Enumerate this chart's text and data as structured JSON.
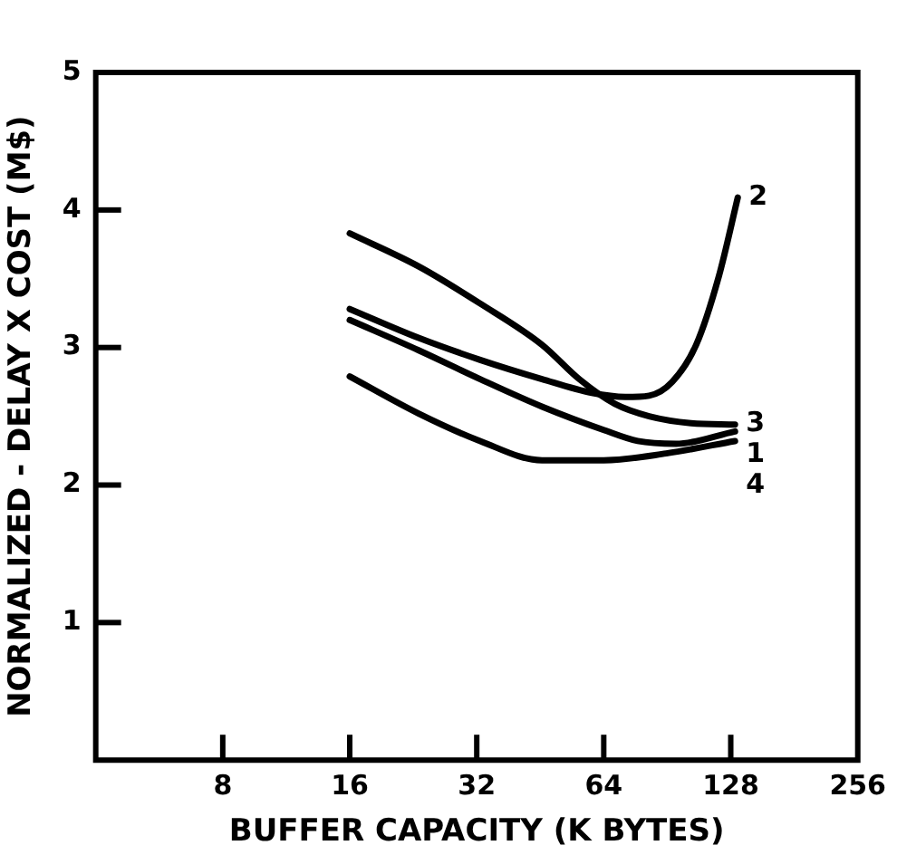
{
  "chart_data": {
    "type": "line",
    "xlabel": "BUFFER CAPACITY (K BYTES)",
    "ylabel": "NORMALIZED - DELAY X COST (M$)",
    "log": "x",
    "xlim": [
      4,
      256
    ],
    "xticks": [
      8,
      16,
      32,
      64,
      128,
      256
    ],
    "ylim": [
      0,
      5
    ],
    "yticks": [
      1,
      2,
      3,
      4,
      5
    ],
    "grid": false,
    "legend": false,
    "marker": "none",
    "line_style": "solid",
    "series": [
      {
        "name": "1",
        "color": "#000000",
        "x": [
          16,
          23.3,
          32.6,
          45.7,
          64,
          77,
          95,
          131
        ],
        "values": [
          3.2,
          2.98,
          2.77,
          2.57,
          2.4,
          2.32,
          2.3,
          2.39
        ]
      },
      {
        "name": "2",
        "color": "#000000",
        "x": [
          16,
          23.3,
          32.6,
          45.7,
          60,
          72,
          82,
          93,
          106,
          120,
          133
        ],
        "values": [
          3.28,
          3.07,
          2.91,
          2.77,
          2.67,
          2.64,
          2.65,
          2.75,
          3.02,
          3.52,
          4.09
        ]
      },
      {
        "name": "3",
        "color": "#000000",
        "x": [
          16,
          23.3,
          32.6,
          45.7,
          56,
          68,
          82,
          103,
          131
        ],
        "values": [
          3.83,
          3.59,
          3.32,
          3.02,
          2.77,
          2.59,
          2.5,
          2.45,
          2.44
        ]
      },
      {
        "name": "4",
        "color": "#000000",
        "x": [
          16,
          23.3,
          32.6,
          45.7,
          64,
          90,
          131
        ],
        "values": [
          2.79,
          2.52,
          2.32,
          2.18,
          2.18,
          2.23,
          2.32
        ]
      }
    ]
  }
}
